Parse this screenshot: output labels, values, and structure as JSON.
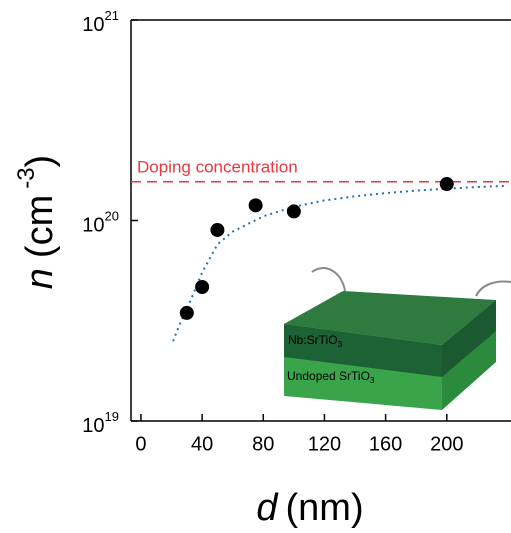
{
  "chart_data": {
    "type": "scatter",
    "xlabel": {
      "var": "d",
      "unit": "(nm)"
    },
    "ylabel": {
      "var": "n",
      "unit": "(cm",
      "exp": "-3",
      "close": ")"
    },
    "x": [
      30,
      40,
      50,
      75,
      100,
      200
    ],
    "values": [
      3.46e+19,
      4.66e+19,
      8.97e+19,
      1.19e+20,
      1.11e+20,
      1.52e+20
    ],
    "color": "#000000",
    "fit": {
      "color": "#2a6fb5",
      "x": [
        21,
        25,
        30,
        40,
        50,
        60,
        80,
        100,
        120,
        140,
        160,
        180,
        200,
        220,
        240
      ],
      "values": [
        2.5e+19,
        3e+19,
        3.6e+19,
        5.5e+19,
        7.6e+19,
        8.8e+19,
        1.05e+20,
        1.17e+20,
        1.26e+20,
        1.32e+20,
        1.37e+20,
        1.41e+20,
        1.44e+20,
        1.47e+20,
        1.49e+20
      ]
    },
    "reference_line": {
      "label": "Doping concentration",
      "value": 1.56e+20,
      "color": "#e8393f"
    },
    "xlim": [
      -6.5,
      242
    ],
    "xticks": [
      0,
      40,
      80,
      120,
      160,
      200
    ],
    "ylim": [
      1e+19,
      1e+21
    ],
    "yscale": "log",
    "yticks": [
      {
        "value": 1e+19,
        "label": "10",
        "exp": "19"
      },
      {
        "value": 1e+20,
        "label": "10",
        "exp": "20"
      },
      {
        "value": 1e+21,
        "label": "10",
        "exp": "21"
      }
    ],
    "inset": {
      "top_layer": "Nb:SrTiO",
      "top_layer_sub": "3",
      "bottom_layer": "Undoped SrTiO",
      "bottom_layer_sub": "3"
    }
  }
}
